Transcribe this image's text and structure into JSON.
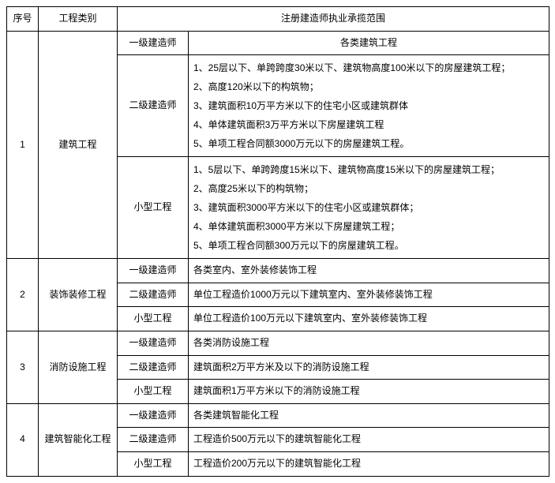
{
  "headers": {
    "seq": "序号",
    "category": "工程类别",
    "scope": "注册建造师执业承揽范围"
  },
  "levels": {
    "l1": "一级建造师",
    "l2": "二级建造师",
    "l3": "小型工程"
  },
  "rows": [
    {
      "seq": "1",
      "category": "建筑工程",
      "items": [
        {
          "level": "l1",
          "scope": "各类建筑工程",
          "centered": true
        },
        {
          "level": "l2",
          "scope": "1、25层以下、单跨跨度30米以下、建筑物高度100米以下的房屋建筑工程；\n2、高度120米以下的构筑物；\n3、建筑面积10万平方米以下的住宅小区或建筑群体\n4、单体建筑面积3万平方米以下房屋建筑工程\n5、单项工程合同额3000万元以下的房屋建筑工程。"
        },
        {
          "level": "l3",
          "scope": "1、5层以下、单跨跨度15米以下、建筑物高度15米以下的房屋建筑工程；\n2、高度25米以下的构筑物；\n3、建筑面积3000平方米以下的住宅小区或建筑群体；\n4、单体建筑面积3000平方米以下房屋建筑工程；\n5、单项工程合同额300万元以下的房屋建筑工程。"
        }
      ]
    },
    {
      "seq": "2",
      "category": "装饰装修工程",
      "items": [
        {
          "level": "l1",
          "scope": "各类室内、室外装修装饰工程"
        },
        {
          "level": "l2",
          "scope": "单位工程造价1000万元以下建筑室内、室外装修装饰工程"
        },
        {
          "level": "l3",
          "scope": "单位工程造价100万元以下建筑室内、室外装修装饰工程"
        }
      ]
    },
    {
      "seq": "3",
      "category": "消防设施工程",
      "items": [
        {
          "level": "l1",
          "scope": "各类消防设施工程"
        },
        {
          "level": "l2",
          "scope": "建筑面积2万平方米及以下的消防设施工程"
        },
        {
          "level": "l3",
          "scope": "建筑面积1万平方米以下的消防设施工程"
        }
      ]
    },
    {
      "seq": "4",
      "category": "建筑智能化工程",
      "items": [
        {
          "level": "l1",
          "scope": "各类建筑智能化工程"
        },
        {
          "level": "l2",
          "scope": "工程造价500万元以下的建筑智能化工程"
        },
        {
          "level": "l3",
          "scope": "工程造价200万元以下的建筑智能化工程"
        }
      ]
    }
  ],
  "colors": {
    "border": "#000000",
    "text": "#000000",
    "background": "#ffffff"
  },
  "fonts": {
    "body_size": 12,
    "line_height": 1.8
  }
}
